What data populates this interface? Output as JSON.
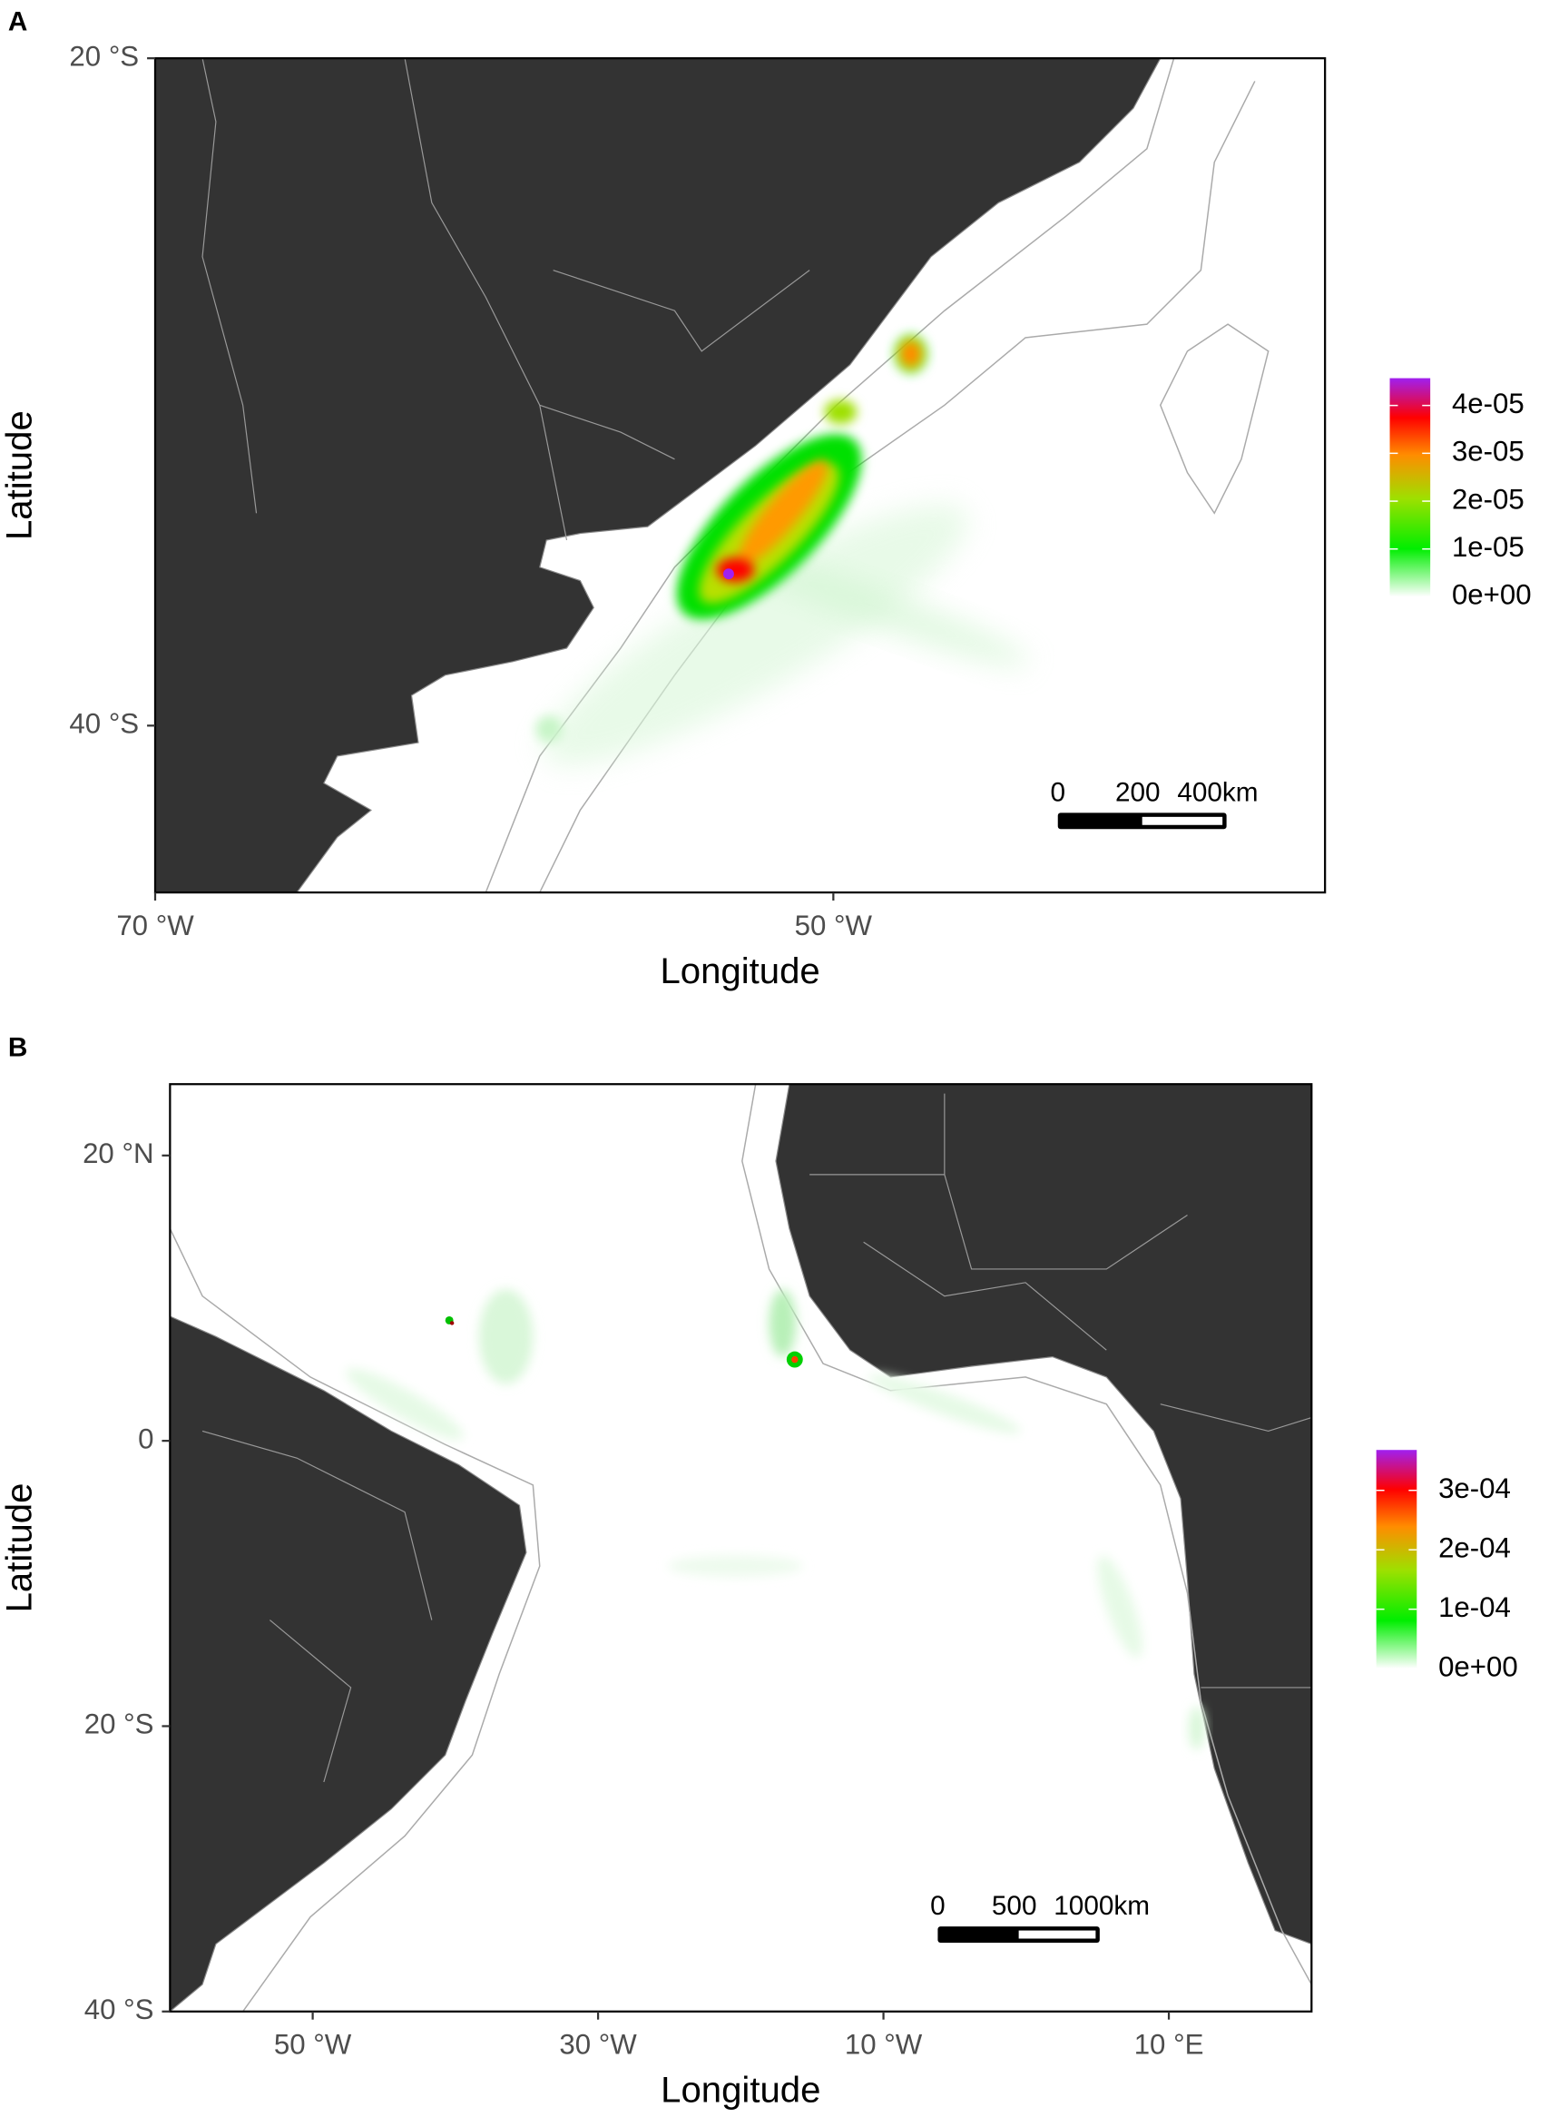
{
  "panels": [
    {
      "label": "A",
      "x_label": "Longitude",
      "y_label": "Latitude",
      "xlim": [
        -70,
        -35.5
      ],
      "ylim": [
        -45,
        -20
      ],
      "xticks": [
        {
          "value": -70,
          "label": "70 °W"
        },
        {
          "value": -50,
          "label": "50 °W"
        }
      ],
      "yticks": [
        {
          "value": -20,
          "label": "20 °S"
        },
        {
          "value": -40,
          "label": "40 °S"
        }
      ],
      "legend_lim": [
        0,
        4.57e-05
      ],
      "legend_ticks": [
        {
          "value": 0,
          "label": "0e+00"
        },
        {
          "value": 1e-05,
          "label": "1e-05"
        },
        {
          "value": 2e-05,
          "label": "2e-05"
        },
        {
          "value": 3e-05,
          "label": "3e-05"
        },
        {
          "value": 4e-05,
          "label": "4e-05"
        }
      ],
      "scale_bar": [
        "0",
        "200",
        "400km"
      ]
    },
    {
      "label": "B",
      "x_label": "Longitude",
      "y_label": "Latitude",
      "xlim": [
        -60,
        20
      ],
      "ylim": [
        -40,
        25
      ],
      "xticks": [
        {
          "value": -50,
          "label": "50 °W"
        },
        {
          "value": -30,
          "label": "30 °W"
        },
        {
          "value": -10,
          "label": "10 °W"
        },
        {
          "value": 10,
          "label": "10 °E"
        }
      ],
      "yticks": [
        {
          "value": 20,
          "label": "20 °N"
        },
        {
          "value": 0,
          "label": "0"
        },
        {
          "value": -20,
          "label": "20 °S"
        },
        {
          "value": -40,
          "label": "40 °S"
        }
      ],
      "legend_lim": [
        0,
        0.000368
      ],
      "legend_ticks": [
        {
          "value": 0,
          "label": "0e+00"
        },
        {
          "value": 0.0001,
          "label": "1e-04"
        },
        {
          "value": 0.0002,
          "label": "2e-04"
        },
        {
          "value": 0.0003,
          "label": "3e-04"
        }
      ],
      "scale_bar": [
        "0",
        "500",
        "1000km"
      ]
    }
  ]
}
